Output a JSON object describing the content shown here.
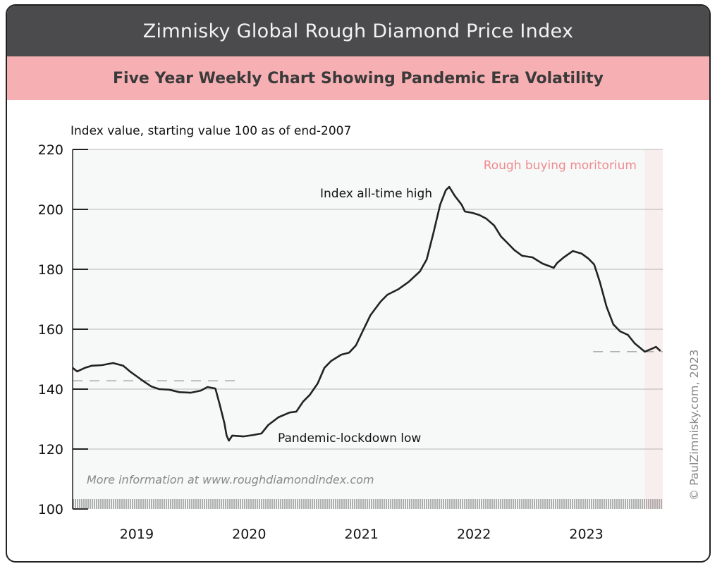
{
  "header": {
    "title": "Zimnisky Global Rough Diamond Price Index",
    "subtitle": "Five Year Weekly Chart Showing Pandemic Era Volatility"
  },
  "copyright": "© PaulZimnisky.com, 2023",
  "chart_data": {
    "type": "line",
    "ylabel": "Index value, starting value 100 as of end-2007",
    "ylim": [
      100,
      220
    ],
    "yticks": [
      100,
      120,
      140,
      160,
      180,
      200,
      220
    ],
    "xlim": [
      2018.6,
      2023.85
    ],
    "xticks": [
      "2019",
      "2020",
      "2021",
      "2022",
      "2023"
    ],
    "grid": true,
    "line_color": "#222222",
    "series": [
      {
        "x": [
          2018.6,
          2018.64,
          2018.71,
          2018.77,
          2018.86,
          2018.93,
          2018.96,
          2019.05,
          2019.11,
          2019.18,
          2019.24,
          2019.3,
          2019.37,
          2019.46,
          2019.55,
          2019.65,
          2019.74,
          2019.8,
          2019.87,
          2019.91,
          2019.95,
          2019.97,
          2019.99,
          2020.02,
          2020.12,
          2020.21,
          2020.28,
          2020.34,
          2020.43,
          2020.53,
          2020.59,
          2020.65,
          2020.71,
          2020.78,
          2020.84,
          2020.9,
          2020.99,
          2021.06,
          2021.12,
          2021.18,
          2021.25,
          2021.34,
          2021.4,
          2021.5,
          2021.59,
          2021.69,
          2021.75,
          2021.81,
          2021.87,
          2021.92,
          2021.95,
          2022.0,
          2022.06,
          2022.09,
          2022.16,
          2022.22,
          2022.28,
          2022.35,
          2022.41,
          2022.47,
          2022.53,
          2022.6,
          2022.69,
          2022.78,
          2022.88,
          2022.91,
          2022.97,
          2023.05,
          2023.13,
          2023.19,
          2023.24,
          2023.29,
          2023.35,
          2023.41,
          2023.47,
          2023.54,
          2023.6,
          2023.69,
          2023.76,
          2023.79,
          2023.83
        ],
        "y": [
          147.1,
          145.9,
          147.1,
          147.8,
          148.0,
          148.5,
          148.7,
          147.8,
          145.9,
          144.0,
          142.4,
          140.9,
          140.0,
          139.8,
          139.0,
          138.8,
          139.5,
          140.7,
          140.2,
          134.6,
          128.7,
          124.5,
          122.8,
          124.5,
          124.2,
          124.7,
          125.2,
          128.0,
          130.6,
          132.2,
          132.5,
          135.8,
          138.1,
          141.9,
          147.1,
          149.4,
          151.5,
          152.2,
          154.6,
          159.3,
          164.7,
          169.2,
          171.5,
          173.4,
          175.8,
          179.3,
          183.3,
          192.2,
          201.6,
          206.4,
          207.5,
          204.5,
          201.6,
          199.3,
          198.8,
          198.1,
          196.9,
          194.6,
          191.0,
          188.7,
          186.4,
          184.5,
          184.0,
          181.9,
          180.5,
          182.1,
          184.0,
          186.1,
          185.2,
          183.5,
          181.6,
          175.8,
          167.5,
          161.6,
          159.3,
          158.1,
          155.3,
          152.5,
          153.6,
          154.1,
          152.7
        ]
      }
    ],
    "reference_lines": [
      {
        "y": 142.8,
        "x": [
          2018.6,
          2020.1
        ],
        "style": "dashed"
      },
      {
        "y": 152.5,
        "x": [
          2023.23,
          2023.85
        ],
        "style": "dashed"
      }
    ],
    "shaded_region": {
      "x": [
        2023.69,
        2023.85
      ],
      "color": "#f9eeee",
      "label": "Rough buying moritorium",
      "label_color": "#f08a90"
    },
    "annotations": {
      "high": "Index all-time high",
      "low": "Pandemic-lockdown low",
      "info": "More information at www.roughdiamondindex.com"
    }
  }
}
